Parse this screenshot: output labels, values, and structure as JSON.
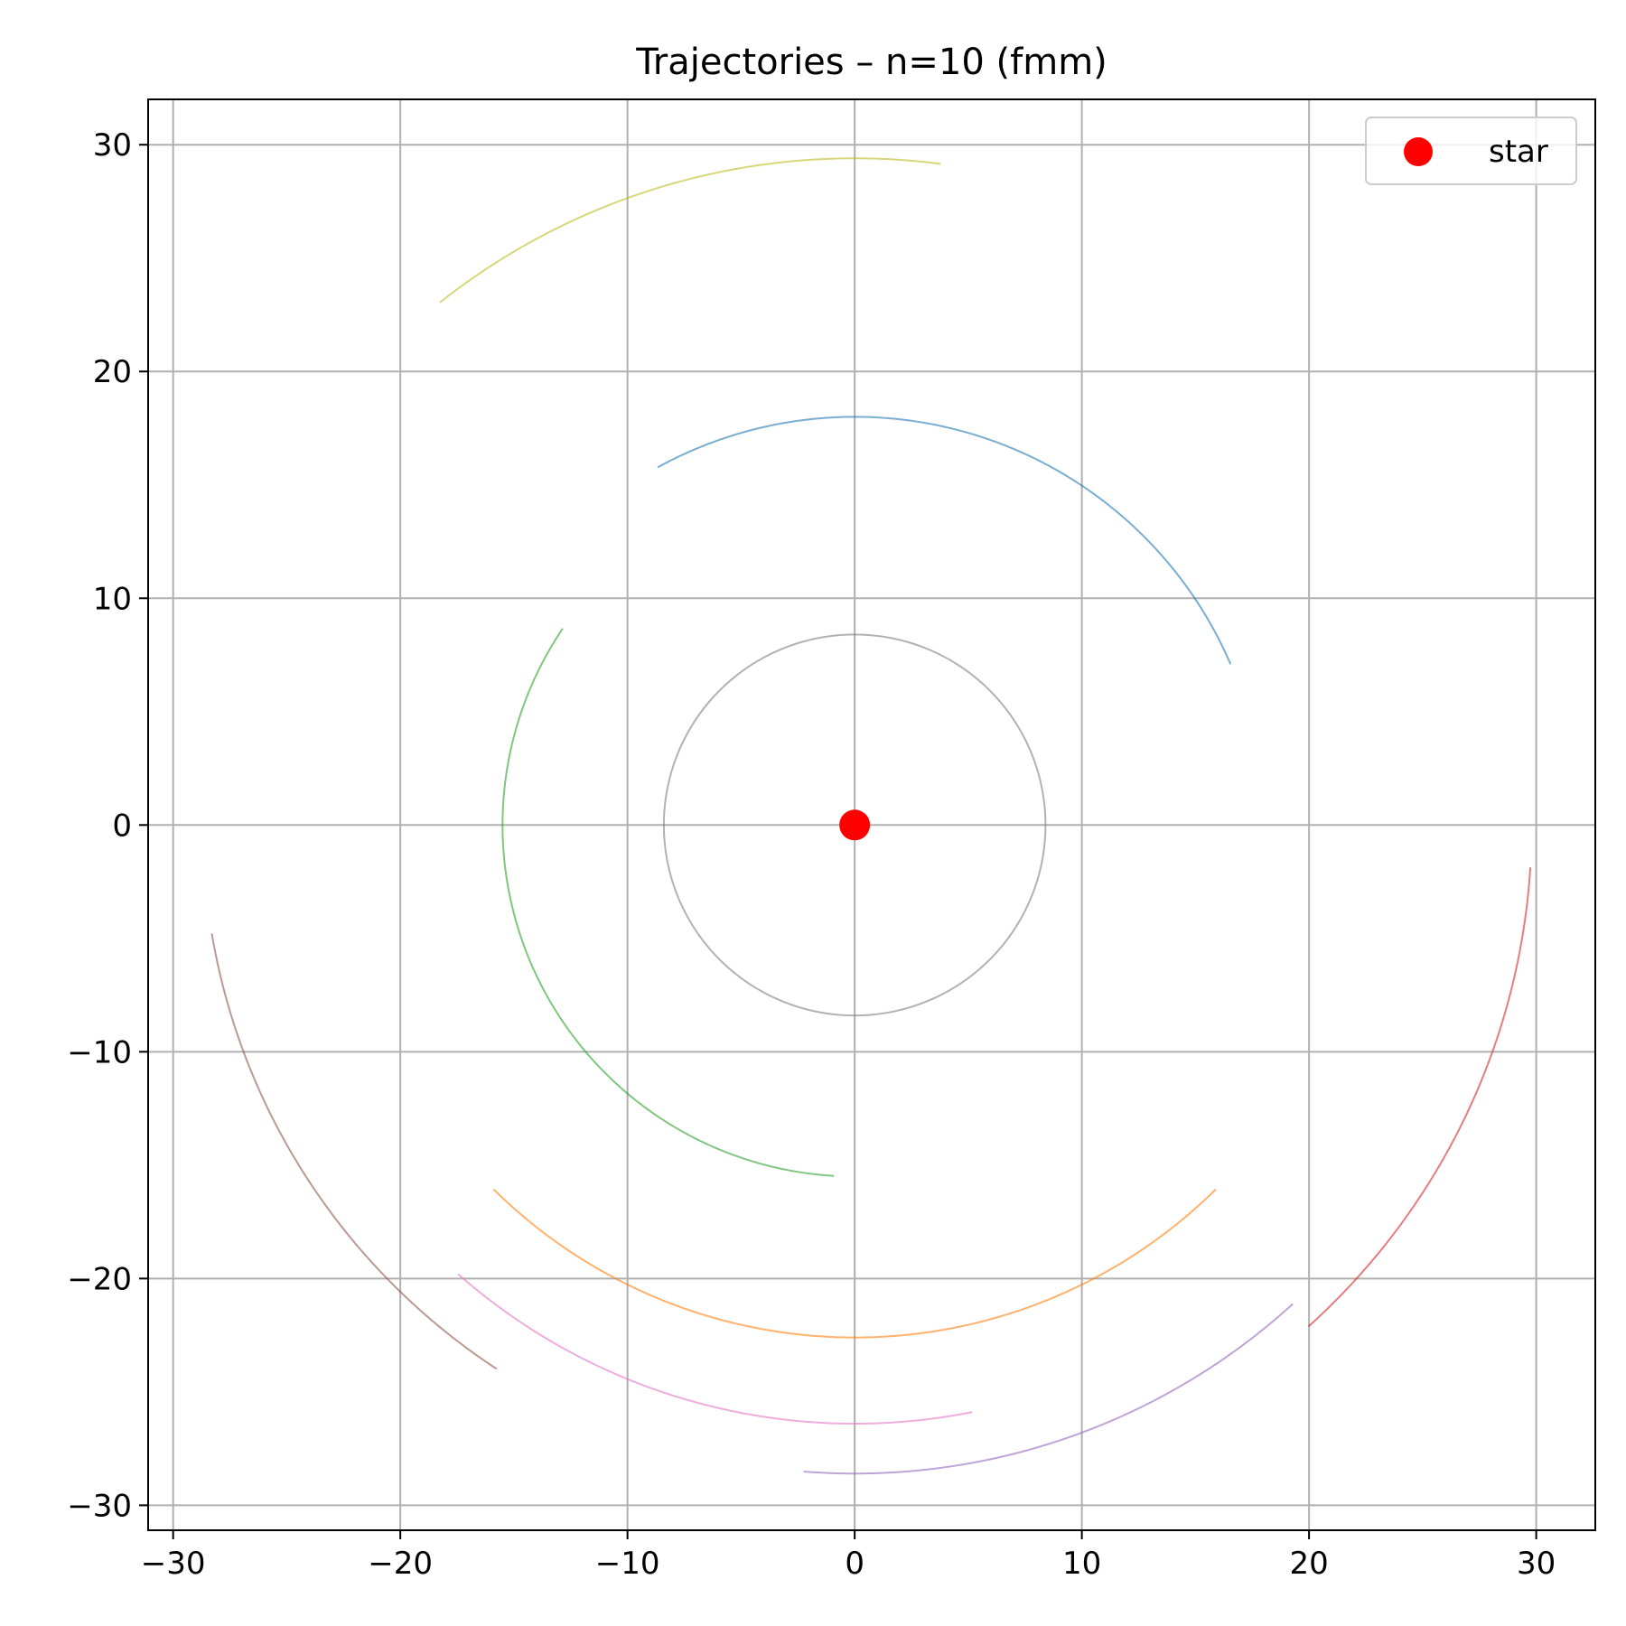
{
  "chart_data": {
    "type": "line",
    "title": "Trajectories – n=10 (fmm)",
    "xlabel": "",
    "ylabel": "",
    "xlim": [
      -31.1,
      32.6
    ],
    "ylim": [
      -31.1,
      32.0
    ],
    "xticks": [
      -30,
      -20,
      -10,
      0,
      10,
      20,
      30
    ],
    "yticks": [
      -30,
      -20,
      -10,
      0,
      10,
      20,
      30
    ],
    "xtick_labels": [
      "−30",
      "−20",
      "−10",
      "0",
      "10",
      "20",
      "30"
    ],
    "ytick_labels": [
      "−30",
      "−20",
      "−10",
      "0",
      "10",
      "20",
      "30"
    ],
    "grid": true,
    "legend_position": "top-right",
    "star": {
      "label": "star",
      "x": 0,
      "y": 0,
      "color": "#ff0000"
    },
    "trajectories": [
      {
        "color": "#1f77b4",
        "radius": 18.0,
        "start_deg": 23.2,
        "end_deg": 118.8
      },
      {
        "color": "#ff7f0e",
        "radius": 22.6,
        "start_deg": 225.3,
        "end_deg": 314.7
      },
      {
        "color": "#2ca02c",
        "radius": 15.5,
        "start_deg": 146.0,
        "end_deg": 266.6
      },
      {
        "color": "#d62728",
        "radius": 29.8,
        "start_deg": 312.1,
        "end_deg": 356.4
      },
      {
        "color": "#9467bd",
        "radius": 28.6,
        "start_deg": 265.5,
        "end_deg": 312.4
      },
      {
        "color": "#8c564b",
        "radius": 28.7,
        "start_deg": 189.6,
        "end_deg": 236.7
      },
      {
        "color": "#e377c2",
        "radius": 26.4,
        "start_deg": 228.6,
        "end_deg": 281.3
      },
      {
        "color": "#7f7f7f",
        "radius": 8.4,
        "start_deg": -230.5,
        "end_deg": 165.1
      },
      {
        "color": "#bcbd22",
        "radius": 29.4,
        "start_deg": 82.6,
        "end_deg": 128.4
      }
    ]
  }
}
